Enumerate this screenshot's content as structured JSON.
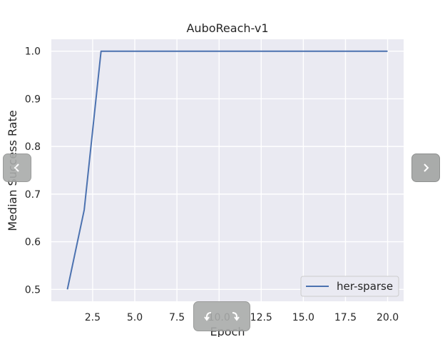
{
  "chart_data": {
    "type": "line",
    "title": "AuboReach-v1",
    "xlabel": "Epoch",
    "ylabel": "Median Success Rate",
    "xlim": [
      0.05,
      20.95
    ],
    "ylim": [
      0.475,
      1.025
    ],
    "xticks": [
      2.5,
      5.0,
      7.5,
      10.0,
      12.5,
      15.0,
      17.5,
      20.0
    ],
    "yticks": [
      0.5,
      0.6,
      0.7,
      0.8,
      0.9,
      1.0
    ],
    "grid": true,
    "legend_position": "bottom-right",
    "series": [
      {
        "name": "her-sparse",
        "color": "#4c72b0",
        "x": [
          1,
          2,
          3,
          4,
          5,
          6,
          7,
          8,
          9,
          10,
          11,
          12,
          13,
          14,
          15,
          16,
          17,
          18,
          19,
          20
        ],
        "y": [
          0.5,
          0.667,
          1.0,
          1.0,
          1.0,
          1.0,
          1.0,
          1.0,
          1.0,
          1.0,
          1.0,
          1.0,
          1.0,
          1.0,
          1.0,
          1.0,
          1.0,
          1.0,
          1.0,
          1.0
        ]
      }
    ]
  },
  "ui": {
    "prev_icon": "chevron-left-icon",
    "next_icon": "chevron-right-icon",
    "expand_icon": "expand-arrows-icon",
    "button_color": "#a9abaa"
  }
}
